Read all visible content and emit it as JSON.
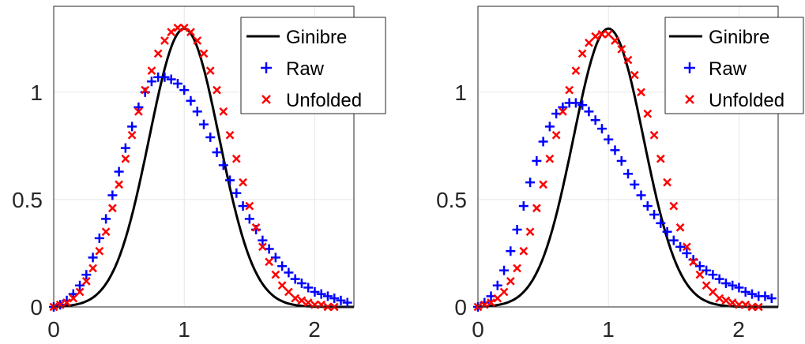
{
  "chart_data": [
    {
      "type": "line+scatter",
      "xlim": [
        0,
        2.3
      ],
      "ylim": [
        0,
        1.4
      ],
      "x_ticks": [
        "0",
        "1",
        "2"
      ],
      "y_ticks": [
        "0",
        "0.5",
        "1"
      ],
      "grid": true,
      "legend_position": "top-right",
      "legend": [
        "Ginibre",
        "Raw",
        "Unfolded"
      ],
      "series": [
        {
          "name": "Ginibre",
          "kind": "curve",
          "color": "#000000",
          "peak": 1.296,
          "mode": 1.0
        },
        {
          "name": "Raw",
          "kind": "marker-plus",
          "color": "#0000ff",
          "x": [
            0.0,
            0.05,
            0.1,
            0.15,
            0.2,
            0.25,
            0.3,
            0.35,
            0.4,
            0.45,
            0.5,
            0.55,
            0.6,
            0.65,
            0.7,
            0.75,
            0.8,
            0.85,
            0.9,
            0.95,
            1.0,
            1.05,
            1.1,
            1.15,
            1.2,
            1.25,
            1.3,
            1.35,
            1.4,
            1.45,
            1.5,
            1.55,
            1.6,
            1.65,
            1.7,
            1.75,
            1.8,
            1.85,
            1.9,
            1.95,
            2.0,
            2.05,
            2.1,
            2.15,
            2.2,
            2.25
          ],
          "y": [
            0.0,
            0.01,
            0.03,
            0.06,
            0.1,
            0.15,
            0.23,
            0.32,
            0.41,
            0.52,
            0.63,
            0.74,
            0.84,
            0.93,
            1.0,
            1.05,
            1.07,
            1.07,
            1.06,
            1.04,
            1.01,
            0.96,
            0.91,
            0.85,
            0.79,
            0.72,
            0.66,
            0.59,
            0.53,
            0.47,
            0.41,
            0.36,
            0.31,
            0.27,
            0.23,
            0.19,
            0.16,
            0.13,
            0.11,
            0.09,
            0.07,
            0.06,
            0.05,
            0.04,
            0.03,
            0.02
          ]
        },
        {
          "name": "Unfolded",
          "kind": "marker-x",
          "color": "#ff0000",
          "x": [
            0.0,
            0.05,
            0.1,
            0.15,
            0.2,
            0.25,
            0.3,
            0.35,
            0.4,
            0.45,
            0.5,
            0.55,
            0.6,
            0.65,
            0.7,
            0.75,
            0.8,
            0.85,
            0.9,
            0.95,
            1.0,
            1.05,
            1.1,
            1.15,
            1.2,
            1.25,
            1.3,
            1.35,
            1.4,
            1.45,
            1.5,
            1.55,
            1.6,
            1.65,
            1.7,
            1.75,
            1.8,
            1.85,
            1.9,
            1.95,
            2.0,
            2.05,
            2.1,
            2.15
          ],
          "y": [
            0.0,
            0.01,
            0.02,
            0.04,
            0.07,
            0.12,
            0.18,
            0.26,
            0.35,
            0.46,
            0.57,
            0.69,
            0.8,
            0.91,
            1.01,
            1.1,
            1.18,
            1.24,
            1.28,
            1.3,
            1.3,
            1.28,
            1.24,
            1.18,
            1.1,
            1.01,
            0.91,
            0.8,
            0.69,
            0.58,
            0.47,
            0.37,
            0.28,
            0.21,
            0.15,
            0.1,
            0.07,
            0.04,
            0.03,
            0.02,
            0.01,
            0.01,
            0.0,
            0.0
          ]
        }
      ]
    },
    {
      "type": "line+scatter",
      "xlim": [
        0,
        2.3
      ],
      "ylim": [
        0,
        1.4
      ],
      "x_ticks": [
        "0",
        "1",
        "2"
      ],
      "y_ticks": [
        "0",
        "0.5",
        "1"
      ],
      "grid": true,
      "legend_position": "top-right",
      "legend": [
        "Ginibre",
        "Raw",
        "Unfolded"
      ],
      "series": [
        {
          "name": "Ginibre",
          "kind": "curve",
          "color": "#000000",
          "peak": 1.296,
          "mode": 1.0
        },
        {
          "name": "Raw",
          "kind": "marker-plus",
          "color": "#0000ff",
          "x": [
            0.0,
            0.05,
            0.1,
            0.15,
            0.2,
            0.25,
            0.3,
            0.35,
            0.4,
            0.45,
            0.5,
            0.55,
            0.6,
            0.65,
            0.7,
            0.75,
            0.8,
            0.85,
            0.9,
            0.95,
            1.0,
            1.05,
            1.1,
            1.15,
            1.2,
            1.25,
            1.3,
            1.35,
            1.4,
            1.45,
            1.5,
            1.55,
            1.6,
            1.65,
            1.7,
            1.75,
            1.8,
            1.85,
            1.9,
            1.95,
            2.0,
            2.05,
            2.1,
            2.15,
            2.2,
            2.25
          ],
          "y": [
            0.0,
            0.02,
            0.05,
            0.1,
            0.17,
            0.26,
            0.36,
            0.47,
            0.58,
            0.68,
            0.77,
            0.84,
            0.9,
            0.93,
            0.95,
            0.95,
            0.94,
            0.91,
            0.87,
            0.83,
            0.78,
            0.73,
            0.68,
            0.62,
            0.57,
            0.52,
            0.47,
            0.43,
            0.39,
            0.35,
            0.31,
            0.28,
            0.25,
            0.22,
            0.19,
            0.17,
            0.15,
            0.13,
            0.11,
            0.1,
            0.09,
            0.07,
            0.06,
            0.05,
            0.05,
            0.04
          ]
        },
        {
          "name": "Unfolded",
          "kind": "marker-x",
          "color": "#ff0000",
          "x": [
            0.0,
            0.05,
            0.1,
            0.15,
            0.2,
            0.25,
            0.3,
            0.35,
            0.4,
            0.45,
            0.5,
            0.55,
            0.6,
            0.65,
            0.7,
            0.75,
            0.8,
            0.85,
            0.9,
            0.95,
            1.0,
            1.05,
            1.1,
            1.15,
            1.2,
            1.25,
            1.3,
            1.35,
            1.4,
            1.45,
            1.5,
            1.55,
            1.6,
            1.65,
            1.7,
            1.75,
            1.8,
            1.85,
            1.9,
            1.95,
            2.0,
            2.05,
            2.1,
            2.15
          ],
          "y": [
            0.0,
            0.01,
            0.02,
            0.04,
            0.07,
            0.12,
            0.18,
            0.26,
            0.35,
            0.46,
            0.57,
            0.69,
            0.8,
            0.91,
            1.01,
            1.1,
            1.18,
            1.23,
            1.26,
            1.27,
            1.27,
            1.24,
            1.2,
            1.15,
            1.08,
            1.0,
            0.9,
            0.8,
            0.69,
            0.58,
            0.47,
            0.37,
            0.28,
            0.21,
            0.15,
            0.1,
            0.07,
            0.04,
            0.03,
            0.02,
            0.01,
            0.01,
            0.0,
            0.0
          ]
        }
      ]
    }
  ]
}
